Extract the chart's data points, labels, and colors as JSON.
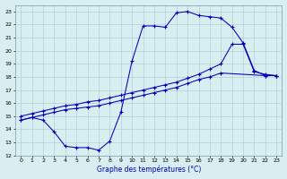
{
  "background_color": "#d8eef0",
  "grid_color": "#b0d0d8",
  "line_color": "#0000bb",
  "xlabel": "Graphe des températures (°C)",
  "xlim": [
    -0.5,
    23.5
  ],
  "ylim": [
    12,
    23.5
  ],
  "xticks": [
    0,
    1,
    2,
    3,
    4,
    5,
    6,
    7,
    8,
    9,
    10,
    11,
    12,
    13,
    14,
    15,
    16,
    17,
    18,
    19,
    20,
    21,
    22,
    23
  ],
  "yticks": [
    12,
    13,
    14,
    15,
    16,
    17,
    18,
    19,
    20,
    21,
    22,
    23
  ],
  "curve1_x": [
    0,
    1,
    2,
    3,
    4,
    5,
    6,
    7,
    8,
    9,
    10,
    11,
    12,
    13,
    14,
    15,
    16,
    17,
    18,
    19,
    20,
    21,
    22,
    23
  ],
  "curve1_y": [
    14.7,
    14.9,
    14.7,
    13.8,
    12.7,
    12.6,
    12.6,
    12.4,
    13.1,
    15.3,
    19.2,
    21.9,
    21.9,
    21.8,
    22.9,
    23.0,
    22.7,
    22.6,
    22.5,
    21.8,
    20.6,
    18.5,
    18.1,
    18.1
  ],
  "curve2_x": [
    0,
    1,
    2,
    3,
    4,
    5,
    6,
    7,
    8,
    9,
    10,
    11,
    12,
    13,
    14,
    15,
    16,
    17,
    18,
    19,
    20,
    21,
    22,
    23
  ],
  "curve2_y": [
    15.0,
    15.2,
    15.4,
    15.6,
    15.8,
    15.9,
    16.1,
    16.2,
    16.4,
    16.6,
    16.8,
    17.0,
    17.2,
    17.4,
    17.6,
    17.9,
    18.2,
    18.6,
    19.0,
    20.5,
    20.5,
    18.4,
    18.2,
    18.1
  ],
  "curve3_x": [
    0,
    1,
    2,
    3,
    4,
    5,
    6,
    7,
    8,
    9,
    10,
    11,
    12,
    13,
    14,
    15,
    16,
    17,
    18,
    22,
    23
  ],
  "curve3_y": [
    14.7,
    14.9,
    15.1,
    15.3,
    15.5,
    15.6,
    15.7,
    15.8,
    16.0,
    16.2,
    16.4,
    16.6,
    16.8,
    17.0,
    17.2,
    17.5,
    17.8,
    18.0,
    18.3,
    18.1,
    18.1
  ]
}
